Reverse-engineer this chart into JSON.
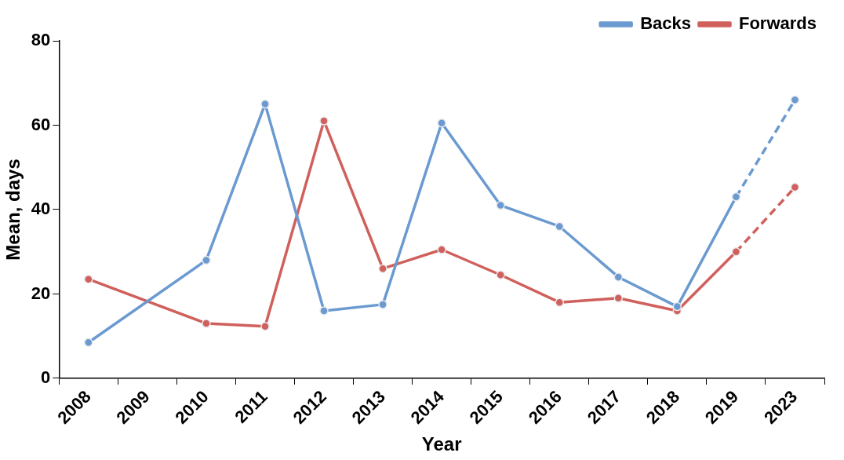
{
  "chart_data": {
    "type": "line",
    "xlabel": "Year",
    "ylabel": "Mean, days",
    "categories": [
      "2008",
      "2009",
      "2010",
      "2011",
      "2012",
      "2013",
      "2014",
      "2015",
      "2016",
      "2017",
      "2018",
      "2019",
      "2023"
    ],
    "series": [
      {
        "name": "Backs",
        "color": "#6a9ad0",
        "values": [
          8.5,
          null,
          28,
          65,
          16,
          17.5,
          60.5,
          41,
          36,
          24,
          17,
          43,
          null
        ]
      },
      {
        "name": "Forwards",
        "color": "#d0605c",
        "values": [
          23.5,
          null,
          13,
          12.3,
          61,
          26,
          30.5,
          24.5,
          18,
          19,
          16,
          30,
          null
        ]
      },
      {
        "color": "#6a9ad0",
        "line_style": "dashed",
        "values": [
          null,
          null,
          null,
          null,
          null,
          null,
          null,
          null,
          null,
          null,
          null,
          43,
          66
        ]
      },
      {
        "color": "#d0605c",
        "line_style": "dashed",
        "values": [
          null,
          null,
          null,
          null,
          null,
          null,
          null,
          null,
          null,
          null,
          null,
          30,
          45.3
        ]
      }
    ],
    "ylim": [
      0,
      80
    ],
    "yticks": [
      0,
      20,
      40,
      60,
      80
    ],
    "grid": false,
    "legend": "top right",
    "marker": "circle",
    "line_style": "solid"
  }
}
